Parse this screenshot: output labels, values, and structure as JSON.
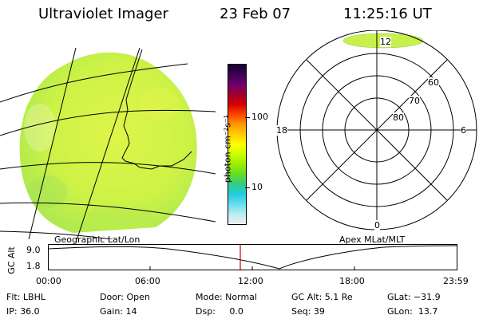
{
  "header": {
    "title": "Ultraviolet Imager",
    "date": "23 Feb 07",
    "time": "11:25:16 UT"
  },
  "colorbar": {
    "unit_label": "photon cm⁻²s⁻¹",
    "tick_high": "100",
    "tick_low": "10",
    "colors_top_to_bottom": [
      "#1a0033",
      "#3d0050",
      "#6e0070",
      "#9e0030",
      "#d40000",
      "#ff4400",
      "#ff9900",
      "#ffcc00",
      "#ffff00",
      "#ccff00",
      "#99ee00",
      "#66dd22",
      "#33cc88",
      "#22ccdd",
      "#66ddee",
      "#bbeeee",
      "#eeeeee"
    ]
  },
  "left_panel": {
    "label": "Geographic Lat/Lon",
    "fill_color": "#c9f04a"
  },
  "right_panel": {
    "label": "Apex MLat/MLT",
    "mlt_labels": {
      "top": "12",
      "left": "18",
      "right": "6",
      "bottom": "0"
    },
    "lat_labels": [
      "60",
      "70",
      "80"
    ]
  },
  "altitude_plot": {
    "ylabel": "GC Alt",
    "y_ticks": [
      "9.0",
      "1.8"
    ],
    "x_ticks": [
      "00:00",
      "06:00",
      "12:00",
      "18:00",
      "23:59"
    ],
    "marker_color": "#cc0000"
  },
  "footer": {
    "flt": "Flt: LBHL",
    "ip": "IP: 36.0",
    "door": "Door: Open",
    "gain": "Gain: 14",
    "mode": "Mode: Normal",
    "dsp": "Dsp:     0.0",
    "gcalt": "GC Alt: 5.1 Re",
    "seq": "Seq: 39",
    "glat": "GLat: −31.9",
    "glon": "GLon:  13.7"
  }
}
